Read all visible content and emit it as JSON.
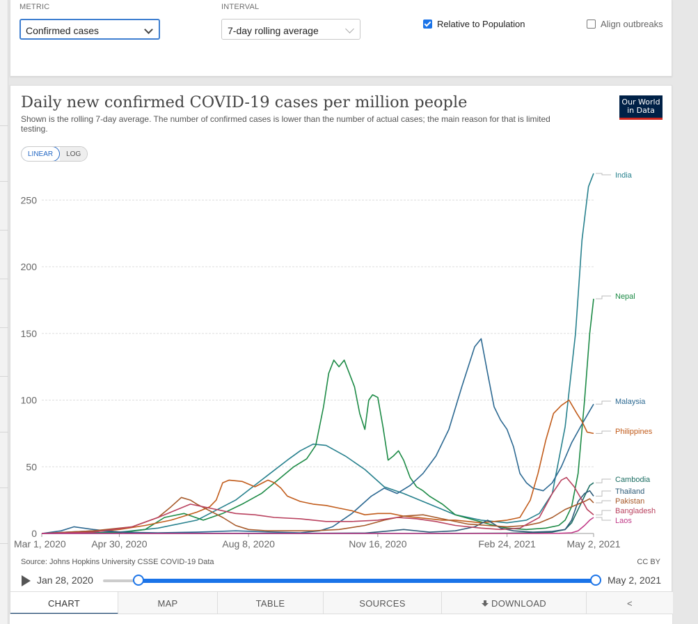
{
  "controls": {
    "metric_label": "METRIC",
    "metric_value": "Confirmed cases",
    "interval_label": "INTERVAL",
    "interval_value": "7-day rolling average",
    "relative_label": "Relative to Population",
    "relative_checked": true,
    "align_label": "Align outbreaks",
    "align_checked": false
  },
  "header": {
    "title": "Daily new confirmed COVID-19 cases per million people",
    "subtitle": "Shown is the rolling 7-day average. The number of confirmed cases is lower than the number of actual cases; the main reason for that is limited testing.",
    "logo_line1": "Our World",
    "logo_line2": "in Data",
    "logo_bg": "#002147",
    "logo_accent": "#ce261e"
  },
  "scale": {
    "linear": "LINEAR",
    "log": "LOG",
    "active": "linear"
  },
  "footer": {
    "source": "Source: Johns Hopkins University CSSE COVID-19 Data",
    "license": "CC BY"
  },
  "timeline": {
    "start_label": "Jan 28, 2020",
    "end_label": "May 2, 2021",
    "accent": "#1a73e8"
  },
  "tabs": {
    "chart": "CHART",
    "map": "MAP",
    "table": "TABLE",
    "sources": "SOURCES",
    "download": "DOWNLOAD",
    "share_icon": "share-icon"
  },
  "chart_data": {
    "type": "line",
    "title": "Daily new confirmed COVID-19 cases per million people",
    "ylabel": "",
    "xlabel": "",
    "ylim": [
      0,
      270
    ],
    "yticks": [
      0,
      50,
      100,
      150,
      200,
      250
    ],
    "xlim_days": [
      0,
      427
    ],
    "xticks": [
      {
        "day": 0,
        "label": "Mar 1, 2020"
      },
      {
        "day": 60,
        "label": "Apr 30, 2020"
      },
      {
        "day": 160,
        "label": "Aug 8, 2020"
      },
      {
        "day": 260,
        "label": "Nov 16, 2020"
      },
      {
        "day": 360,
        "label": "Feb 24, 2021"
      },
      {
        "day": 427,
        "label": "May 2, 2021"
      }
    ],
    "grid": true,
    "series": [
      {
        "name": "India",
        "color": "#26808d",
        "points": [
          [
            0,
            0
          ],
          [
            30,
            0.3
          ],
          [
            60,
            1
          ],
          [
            90,
            4
          ],
          [
            120,
            10
          ],
          [
            150,
            25
          ],
          [
            170,
            40
          ],
          [
            190,
            55
          ],
          [
            200,
            62
          ],
          [
            210,
            67
          ],
          [
            220,
            66
          ],
          [
            235,
            58
          ],
          [
            250,
            48
          ],
          [
            265,
            35
          ],
          [
            280,
            30
          ],
          [
            300,
            22
          ],
          [
            320,
            14
          ],
          [
            340,
            10
          ],
          [
            360,
            8
          ],
          [
            375,
            10
          ],
          [
            385,
            15
          ],
          [
            395,
            30
          ],
          [
            405,
            80
          ],
          [
            413,
            150
          ],
          [
            418,
            220
          ],
          [
            423,
            260
          ],
          [
            427,
            270
          ]
        ]
      },
      {
        "name": "Nepal",
        "color": "#1c8a45",
        "points": [
          [
            0,
            0
          ],
          [
            60,
            0.5
          ],
          [
            80,
            3
          ],
          [
            95,
            12
          ],
          [
            110,
            15
          ],
          [
            125,
            10
          ],
          [
            140,
            15
          ],
          [
            155,
            22
          ],
          [
            170,
            30
          ],
          [
            185,
            42
          ],
          [
            195,
            50
          ],
          [
            205,
            56
          ],
          [
            212,
            66
          ],
          [
            218,
            95
          ],
          [
            222,
            120
          ],
          [
            226,
            130
          ],
          [
            230,
            125
          ],
          [
            234,
            130
          ],
          [
            238,
            120
          ],
          [
            242,
            110
          ],
          [
            246,
            90
          ],
          [
            250,
            78
          ],
          [
            253,
            100
          ],
          [
            256,
            104
          ],
          [
            260,
            102
          ],
          [
            264,
            80
          ],
          [
            268,
            55
          ],
          [
            272,
            58
          ],
          [
            276,
            62
          ],
          [
            280,
            55
          ],
          [
            285,
            42
          ],
          [
            290,
            35
          ],
          [
            295,
            32
          ],
          [
            300,
            28
          ],
          [
            310,
            22
          ],
          [
            320,
            14
          ],
          [
            335,
            10
          ],
          [
            350,
            6
          ],
          [
            360,
            4
          ],
          [
            375,
            3
          ],
          [
            390,
            4
          ],
          [
            400,
            6
          ],
          [
            405,
            10
          ],
          [
            410,
            20
          ],
          [
            415,
            45
          ],
          [
            420,
            100
          ],
          [
            424,
            150
          ],
          [
            427,
            176
          ]
        ]
      },
      {
        "name": "Malaysia",
        "color": "#2b6891",
        "points": [
          [
            0,
            0
          ],
          [
            15,
            2
          ],
          [
            25,
            5
          ],
          [
            40,
            3
          ],
          [
            60,
            1
          ],
          [
            90,
            0.5
          ],
          [
            120,
            1
          ],
          [
            150,
            2
          ],
          [
            180,
            1
          ],
          [
            200,
            0.5
          ],
          [
            215,
            2
          ],
          [
            225,
            5
          ],
          [
            240,
            15
          ],
          [
            255,
            28
          ],
          [
            265,
            34
          ],
          [
            275,
            30
          ],
          [
            285,
            36
          ],
          [
            295,
            45
          ],
          [
            305,
            58
          ],
          [
            315,
            78
          ],
          [
            325,
            110
          ],
          [
            335,
            140
          ],
          [
            340,
            146
          ],
          [
            345,
            120
          ],
          [
            350,
            95
          ],
          [
            355,
            85
          ],
          [
            360,
            78
          ],
          [
            365,
            65
          ],
          [
            370,
            45
          ],
          [
            375,
            38
          ],
          [
            380,
            34
          ],
          [
            388,
            32
          ],
          [
            395,
            38
          ],
          [
            402,
            50
          ],
          [
            410,
            68
          ],
          [
            418,
            82
          ],
          [
            424,
            92
          ],
          [
            427,
            97
          ]
        ]
      },
      {
        "name": "Philippines",
        "color": "#c15b1a",
        "points": [
          [
            0,
            0
          ],
          [
            30,
            0.5
          ],
          [
            60,
            3
          ],
          [
            80,
            6
          ],
          [
            100,
            10
          ],
          [
            120,
            16
          ],
          [
            130,
            20
          ],
          [
            135,
            25
          ],
          [
            140,
            38
          ],
          [
            145,
            40
          ],
          [
            155,
            39
          ],
          [
            165,
            35
          ],
          [
            175,
            40
          ],
          [
            180,
            38
          ],
          [
            185,
            34
          ],
          [
            190,
            28
          ],
          [
            200,
            24
          ],
          [
            210,
            22
          ],
          [
            220,
            21
          ],
          [
            230,
            19
          ],
          [
            240,
            17
          ],
          [
            250,
            14
          ],
          [
            260,
            15
          ],
          [
            270,
            15
          ],
          [
            280,
            13
          ],
          [
            290,
            12
          ],
          [
            300,
            11
          ],
          [
            310,
            10
          ],
          [
            320,
            10
          ],
          [
            330,
            9
          ],
          [
            340,
            8
          ],
          [
            350,
            9
          ],
          [
            360,
            10
          ],
          [
            370,
            12
          ],
          [
            378,
            25
          ],
          [
            384,
            45
          ],
          [
            390,
            70
          ],
          [
            396,
            90
          ],
          [
            402,
            96
          ],
          [
            408,
            100
          ],
          [
            414,
            90
          ],
          [
            418,
            84
          ],
          [
            422,
            76
          ],
          [
            427,
            75
          ]
        ]
      },
      {
        "name": "Cambodia",
        "color": "#1d6e63",
        "points": [
          [
            0,
            0
          ],
          [
            100,
            0
          ],
          [
            200,
            0
          ],
          [
            300,
            0
          ],
          [
            360,
            0.2
          ],
          [
            380,
            0.5
          ],
          [
            395,
            1
          ],
          [
            405,
            3
          ],
          [
            410,
            8
          ],
          [
            415,
            18
          ],
          [
            420,
            28
          ],
          [
            424,
            36
          ],
          [
            427,
            38
          ]
        ]
      },
      {
        "name": "Thailand",
        "color": "#2c5a77",
        "points": [
          [
            0,
            0
          ],
          [
            20,
            1
          ],
          [
            40,
            2
          ],
          [
            55,
            1.5
          ],
          [
            70,
            0.3
          ],
          [
            100,
            0.2
          ],
          [
            150,
            0.1
          ],
          [
            200,
            0.1
          ],
          [
            250,
            0.3
          ],
          [
            270,
            2
          ],
          [
            280,
            3
          ],
          [
            300,
            1
          ],
          [
            320,
            2
          ],
          [
            335,
            5
          ],
          [
            345,
            10
          ],
          [
            355,
            4
          ],
          [
            365,
            2
          ],
          [
            380,
            1
          ],
          [
            395,
            1.5
          ],
          [
            405,
            3
          ],
          [
            410,
            10
          ],
          [
            415,
            24
          ],
          [
            420,
            30
          ],
          [
            424,
            32
          ],
          [
            427,
            28
          ]
        ]
      },
      {
        "name": "Pakistan",
        "color": "#a65828",
        "points": [
          [
            0,
            0
          ],
          [
            40,
            2
          ],
          [
            70,
            5
          ],
          [
            90,
            12
          ],
          [
            100,
            20
          ],
          [
            108,
            27
          ],
          [
            115,
            25
          ],
          [
            120,
            22
          ],
          [
            130,
            17
          ],
          [
            140,
            12
          ],
          [
            150,
            6
          ],
          [
            160,
            3
          ],
          [
            175,
            2
          ],
          [
            190,
            2
          ],
          [
            210,
            2
          ],
          [
            230,
            3
          ],
          [
            250,
            6
          ],
          [
            265,
            10
          ],
          [
            280,
            13
          ],
          [
            295,
            14
          ],
          [
            305,
            12
          ],
          [
            315,
            10
          ],
          [
            330,
            7
          ],
          [
            345,
            6
          ],
          [
            360,
            5
          ],
          [
            375,
            6
          ],
          [
            385,
            8
          ],
          [
            395,
            12
          ],
          [
            405,
            18
          ],
          [
            415,
            22
          ],
          [
            420,
            24
          ],
          [
            424,
            26
          ],
          [
            427,
            23
          ]
        ]
      },
      {
        "name": "Bangladesh",
        "color": "#b9415e",
        "points": [
          [
            0,
            0
          ],
          [
            40,
            1
          ],
          [
            70,
            5
          ],
          [
            90,
            12
          ],
          [
            105,
            18
          ],
          [
            115,
            22
          ],
          [
            125,
            20
          ],
          [
            135,
            18
          ],
          [
            150,
            15
          ],
          [
            165,
            14
          ],
          [
            180,
            12
          ],
          [
            200,
            11
          ],
          [
            220,
            9
          ],
          [
            240,
            9
          ],
          [
            260,
            10
          ],
          [
            275,
            12
          ],
          [
            290,
            11
          ],
          [
            305,
            9
          ],
          [
            320,
            6
          ],
          [
            340,
            4
          ],
          [
            355,
            3
          ],
          [
            370,
            4
          ],
          [
            385,
            12
          ],
          [
            395,
            30
          ],
          [
            402,
            40
          ],
          [
            406,
            42
          ],
          [
            412,
            35
          ],
          [
            418,
            25
          ],
          [
            422,
            18
          ],
          [
            427,
            14
          ]
        ]
      },
      {
        "name": "Laos",
        "color": "#c03987",
        "points": [
          [
            0,
            0
          ],
          [
            100,
            0
          ],
          [
            200,
            0
          ],
          [
            300,
            0
          ],
          [
            380,
            0
          ],
          [
            400,
            0.1
          ],
          [
            410,
            0.5
          ],
          [
            415,
            2
          ],
          [
            420,
            6
          ],
          [
            424,
            10
          ],
          [
            427,
            12
          ]
        ]
      }
    ]
  }
}
